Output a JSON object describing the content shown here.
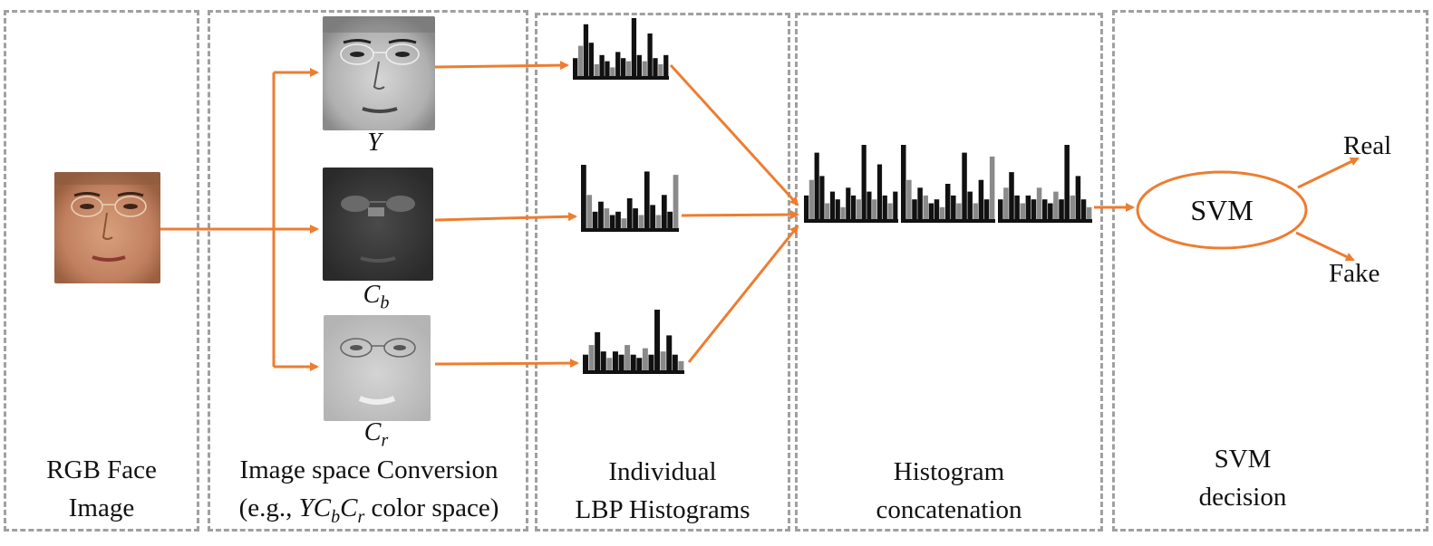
{
  "stages": {
    "rgb": {
      "line1": "RGB Face",
      "line2": "Image"
    },
    "conversion": {
      "line1": "Image space Conversion",
      "line2_pre": "(e.g., ",
      "line2_math": "YC_bC_r",
      "line2_post": " color space)"
    },
    "lbp": {
      "line1": "Individual",
      "line2": "LBP Histograms"
    },
    "concat": {
      "line1": "Histogram",
      "line2": "concatenation"
    },
    "svm": {
      "line1": "SVM",
      "line2": "decision"
    }
  },
  "channels": {
    "y": {
      "label": "Y",
      "sub": ""
    },
    "cb": {
      "label": "C",
      "sub": "b"
    },
    "cr": {
      "label": "C",
      "sub": "r"
    }
  },
  "classifier": {
    "label": "SVM"
  },
  "outputs": {
    "real": "Real",
    "fake": "Fake"
  },
  "colors": {
    "arrow": "#ED7D31",
    "border": "#a0a0a0",
    "bars": "#111111",
    "bar_light": "#8a8a8a"
  },
  "histograms": {
    "y": [
      0.35,
      0.55,
      0.9,
      0.6,
      0.25,
      0.4,
      0.3,
      0.2,
      0.45,
      0.35,
      0.3,
      1.0,
      0.4,
      0.3,
      0.75,
      0.35,
      0.25,
      0.4
    ],
    "cb": [
      1.0,
      0.55,
      0.3,
      0.45,
      0.35,
      0.25,
      0.3,
      0.2,
      0.5,
      0.35,
      0.25,
      0.9,
      0.4,
      0.25,
      0.55,
      0.3,
      0.85
    ],
    "cr": [
      0.3,
      0.45,
      0.65,
      0.35,
      0.25,
      0.35,
      0.3,
      0.45,
      0.3,
      0.25,
      0.4,
      0.3,
      1.0,
      0.35,
      0.6,
      0.3,
      0.2
    ]
  }
}
